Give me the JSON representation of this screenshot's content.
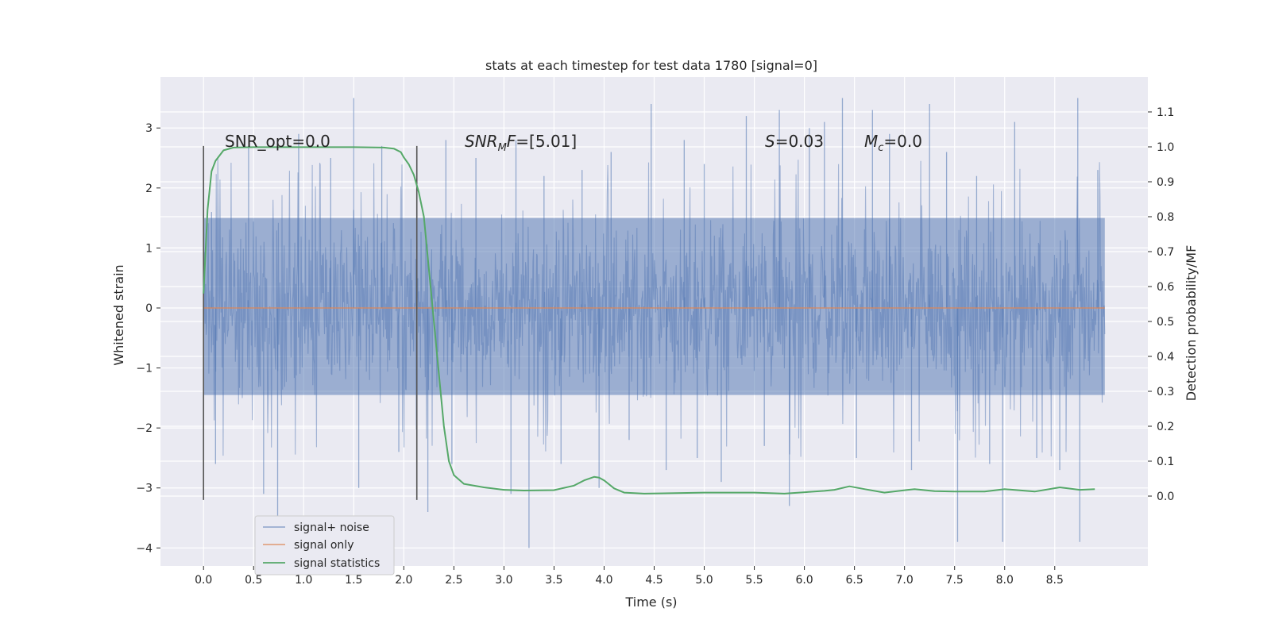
{
  "chart_data": {
    "type": "line",
    "title": "stats at each timestep for test data 1780 [signal=0]",
    "xlabel": "Time (s)",
    "ylabel": "Whitened strain",
    "y2label": "Detection probability/MF",
    "xlim": [
      -0.43,
      9.43
    ],
    "ylim": [
      -4.3,
      3.85
    ],
    "y2lim": [
      -0.2,
      1.2
    ],
    "x_ticks": [
      "0.0",
      "0.5",
      "1.0",
      "1.5",
      "2.0",
      "2.5",
      "3.0",
      "3.5",
      "4.0",
      "4.5",
      "5.0",
      "5.5",
      "6.0",
      "6.5",
      "7.0",
      "7.5",
      "8.0",
      "8.5"
    ],
    "y_ticks": [
      "3",
      "2",
      "1",
      "0",
      "−1",
      "−2",
      "−3",
      "−4"
    ],
    "y2_ticks": [
      "1.1",
      "1.0",
      "0.9",
      "0.8",
      "0.7",
      "0.6",
      "0.5",
      "0.4",
      "0.3",
      "0.2",
      "0.1",
      "0.0"
    ],
    "grid": true,
    "legend_position": "bottom-left",
    "colors": {
      "background": "#eaeaf2",
      "noise": "#4c72b0",
      "signal_only": "#dd8452",
      "statistics": "#55a868",
      "marker": "#555555"
    },
    "annotations": {
      "snr_opt": "SNR_opt=0.0",
      "snr_mf_main": "SNR",
      "snr_mf_sub": "M",
      "snr_mf_rest": "F=[5.01]",
      "s_main": "S",
      "s_rest": "=0.03",
      "mc_main": "M",
      "mc_sub": "c",
      "mc_rest": "=0.0"
    },
    "markers": [
      {
        "x": 0.0,
        "y_range": [
          -3.2,
          2.7
        ]
      },
      {
        "x": 2.13,
        "y_range": [
          -3.2,
          2.7
        ]
      }
    ],
    "series": [
      {
        "name": "signal+ noise",
        "style": "dense noise",
        "x_range": [
          0.0,
          9.0
        ],
        "core_band": [
          -1.45,
          1.5
        ],
        "typical_peaks": [
          -2.4,
          2.3
        ],
        "spikes": [
          [
            0.08,
            1.6
          ],
          [
            0.12,
            -2.6
          ],
          [
            0.45,
            2.7
          ],
          [
            0.6,
            -3.1
          ],
          [
            0.74,
            -3.65
          ],
          [
            0.95,
            2.9
          ],
          [
            1.27,
            2.5
          ],
          [
            1.5,
            3.5
          ],
          [
            1.55,
            -3.0
          ],
          [
            1.78,
            2.7
          ],
          [
            1.95,
            -2.4
          ],
          [
            2.24,
            -3.4
          ],
          [
            2.42,
            2.8
          ],
          [
            2.48,
            -2.6
          ],
          [
            2.72,
            2.5
          ],
          [
            3.07,
            -3.1
          ],
          [
            3.12,
            2.8
          ],
          [
            3.25,
            -4.0
          ],
          [
            3.4,
            2.2
          ],
          [
            3.57,
            -2.6
          ],
          [
            3.78,
            2.3
          ],
          [
            3.95,
            -3.0
          ],
          [
            4.07,
            2.6
          ],
          [
            4.25,
            -2.2
          ],
          [
            4.47,
            3.4
          ],
          [
            4.62,
            -2.7
          ],
          [
            4.8,
            2.8
          ],
          [
            4.93,
            -2.5
          ],
          [
            5.0,
            2.4
          ],
          [
            5.17,
            -2.9
          ],
          [
            5.42,
            3.2
          ],
          [
            5.6,
            -2.3
          ],
          [
            5.75,
            3.3
          ],
          [
            5.85,
            -3.3
          ],
          [
            6.05,
            3.0
          ],
          [
            6.2,
            3.1
          ],
          [
            6.38,
            3.5
          ],
          [
            6.52,
            -2.5
          ],
          [
            6.68,
            3.3
          ],
          [
            6.85,
            2.9
          ],
          [
            7.07,
            -2.7
          ],
          [
            7.25,
            3.4
          ],
          [
            7.42,
            2.6
          ],
          [
            7.53,
            -3.9
          ],
          [
            7.72,
            2.2
          ],
          [
            7.85,
            -2.6
          ],
          [
            7.98,
            -3.9
          ],
          [
            8.1,
            3.1
          ],
          [
            8.32,
            -2.5
          ],
          [
            8.55,
            -2.7
          ],
          [
            8.73,
            3.5
          ],
          [
            8.75,
            -3.9
          ],
          [
            8.93,
            2.3
          ]
        ]
      },
      {
        "name": "signal only",
        "x_range": [
          0.0,
          9.0
        ],
        "y": 0.0
      },
      {
        "name": "signal statistics",
        "axis": "secondary",
        "x": [
          0.0,
          0.04,
          0.08,
          0.12,
          0.2,
          0.3,
          0.5,
          1.0,
          1.5,
          1.8,
          1.9,
          1.97,
          2.0,
          2.05,
          2.1,
          2.15,
          2.2,
          2.25,
          2.3,
          2.35,
          2.4,
          2.45,
          2.5,
          2.6,
          2.8,
          3.0,
          3.2,
          3.5,
          3.7,
          3.8,
          3.9,
          3.95,
          4.0,
          4.1,
          4.2,
          4.4,
          4.6,
          5.0,
          5.3,
          5.5,
          5.8,
          6.2,
          6.3,
          6.45,
          6.6,
          6.8,
          7.1,
          7.3,
          7.5,
          7.8,
          8.0,
          8.3,
          8.55,
          8.75,
          8.9
        ],
        "y": [
          0.58,
          0.82,
          0.93,
          0.96,
          0.99,
          0.998,
          0.999,
          0.999,
          0.999,
          0.998,
          0.995,
          0.985,
          0.97,
          0.95,
          0.92,
          0.87,
          0.8,
          0.65,
          0.5,
          0.35,
          0.2,
          0.1,
          0.06,
          0.035,
          0.025,
          0.018,
          0.016,
          0.017,
          0.03,
          0.045,
          0.055,
          0.053,
          0.045,
          0.022,
          0.01,
          0.007,
          0.008,
          0.01,
          0.01,
          0.01,
          0.007,
          0.015,
          0.018,
          0.028,
          0.02,
          0.01,
          0.02,
          0.014,
          0.013,
          0.013,
          0.02,
          0.013,
          0.025,
          0.018,
          0.02
        ]
      }
    ]
  }
}
